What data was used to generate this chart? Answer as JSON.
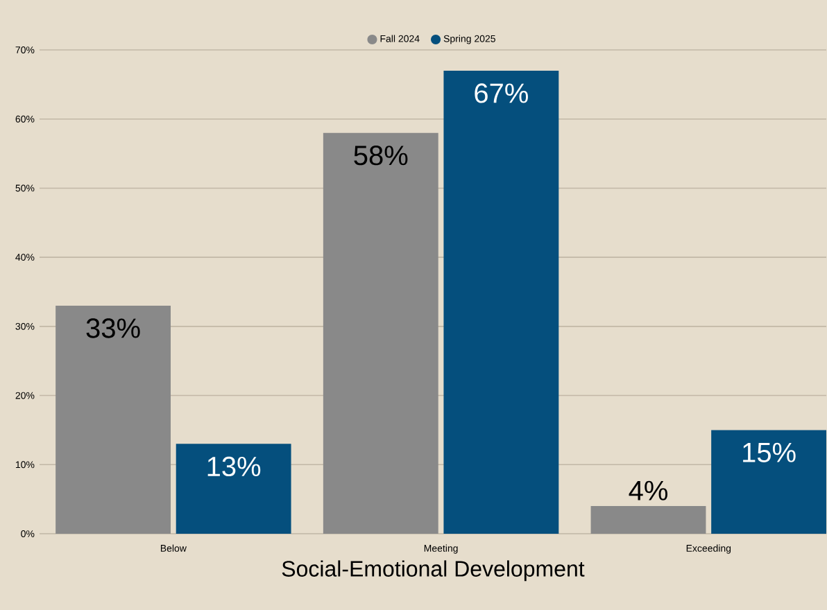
{
  "chart_data": {
    "type": "bar",
    "xlabel": "Social-Emotional Development",
    "categories": [
      "Below",
      "Meeting",
      "Exceeding"
    ],
    "series": [
      {
        "name": "Fall 2024",
        "color": "#898989",
        "values": [
          33,
          58,
          4
        ],
        "value_labels": [
          "33%",
          "58%",
          "4%"
        ]
      },
      {
        "name": "Spring 2025",
        "color": "#054f7d",
        "values": [
          13,
          67,
          15
        ],
        "value_labels": [
          "13%",
          "67%",
          "15%"
        ]
      }
    ],
    "ylim": [
      0,
      70
    ],
    "yticks": [
      {
        "value": 0,
        "label": "0%"
      },
      {
        "value": 10,
        "label": "10%"
      },
      {
        "value": 20,
        "label": "20%"
      },
      {
        "value": 30,
        "label": "30%"
      },
      {
        "value": 40,
        "label": "40%"
      },
      {
        "value": 50,
        "label": "50%"
      },
      {
        "value": 60,
        "label": "60%"
      },
      {
        "value": 70,
        "label": "70%"
      }
    ],
    "grid": "y",
    "legend": "top"
  }
}
